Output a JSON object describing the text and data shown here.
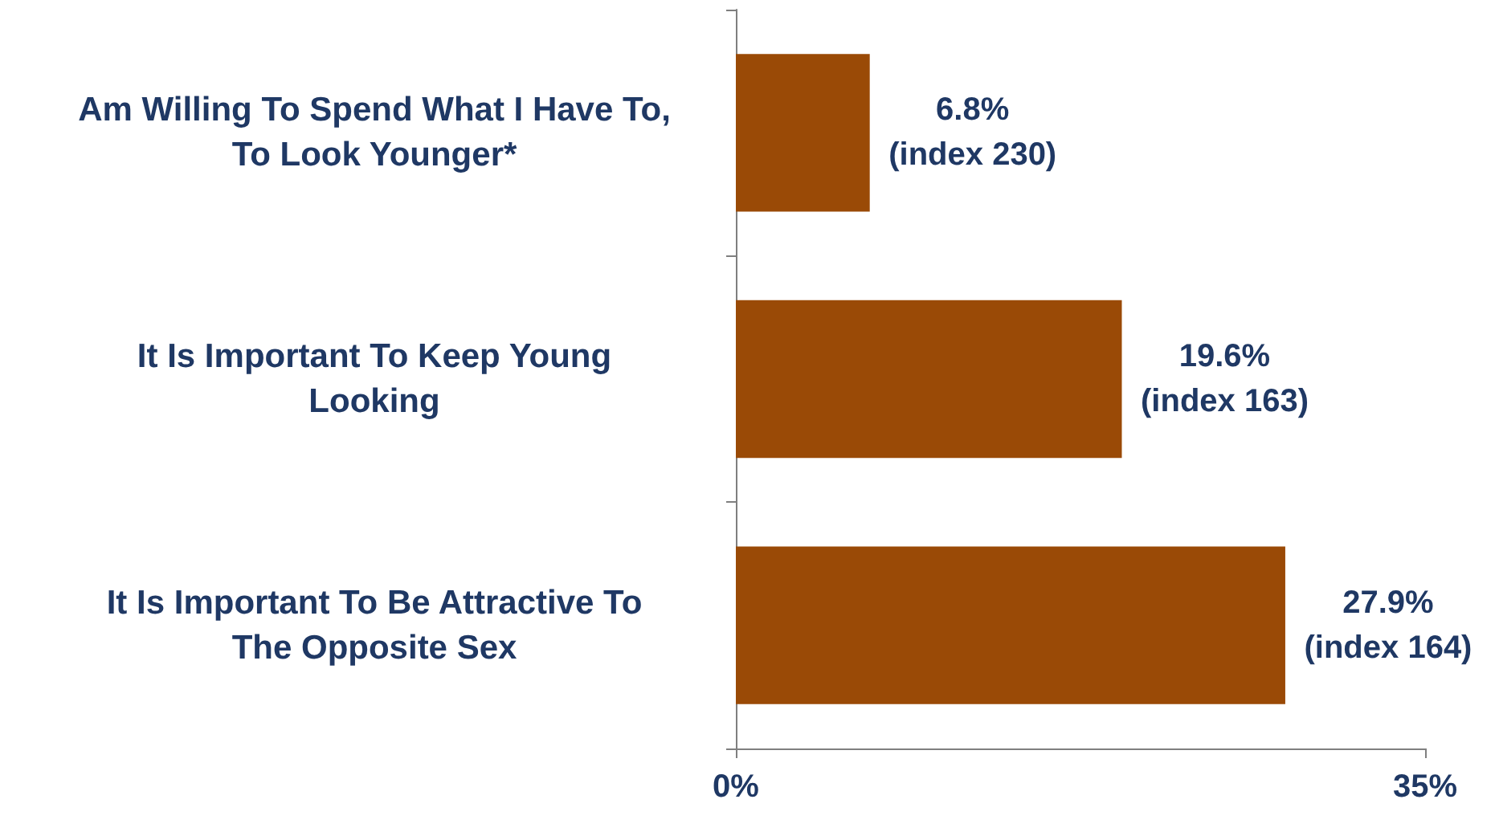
{
  "chart_data": {
    "type": "bar",
    "orientation": "horizontal",
    "categories": [
      "Am Willing To Spend What I Have To,\nTo Look Younger*",
      "It Is Important To Keep Young\nLooking",
      "It Is Important To Be Attractive To\nThe Opposite Sex"
    ],
    "values": [
      6.8,
      19.6,
      27.9
    ],
    "color": "#9a4a06",
    "value_labels": [
      "6.8%\n(index 230)",
      "19.6%\n(index 163)",
      "27.9%\n(index 164)"
    ],
    "xlim": [
      0,
      35
    ],
    "xticks": [
      {
        "value": 0,
        "label": "0%"
      },
      {
        "value": 35,
        "label": "35%"
      }
    ],
    "grid": false
  }
}
